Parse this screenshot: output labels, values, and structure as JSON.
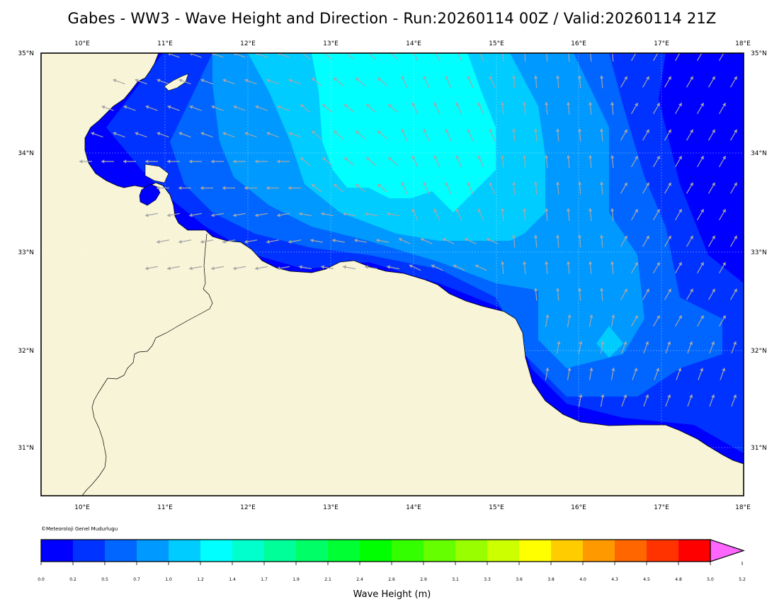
{
  "title": "Gabes - WW3 - Wave Height and Direction - Run:20260114 00Z / Valid:20260114 21Z",
  "map": {
    "lon_labels": [
      "10°E",
      "11°E",
      "12°E",
      "13°E",
      "14°E",
      "15°E",
      "16°E",
      "17°E",
      "18°E"
    ],
    "lat_labels": [
      "35°N",
      "34°N",
      "33°N",
      "32°N",
      "31°N"
    ],
    "land_color": "#f7f4d7",
    "arrow_color": "#a6a6a6"
  },
  "credit": "©Meteoroloji Genel Mudurlugu",
  "colorbar": {
    "label": "Wave Height (m)",
    "ticks": [
      "0.0",
      "0.2",
      "0.5",
      "0.7",
      "1.0",
      "1.2",
      "1.4",
      "1.7",
      "1.9",
      "2.1",
      "2.4",
      "2.6",
      "2.9",
      "3.1",
      "3.3",
      "3.6",
      "3.8",
      "4.0",
      "4.3",
      "4.5",
      "4.8",
      "5.0",
      "5.2"
    ],
    "colors": [
      "#0000ff",
      "#0033ff",
      "#0066ff",
      "#0099ff",
      "#00ccff",
      "#00ffff",
      "#00ffcc",
      "#00ff99",
      "#00ff66",
      "#00ff33",
      "#00ff00",
      "#33ff00",
      "#66ff00",
      "#99ff00",
      "#ccff00",
      "#ffff00",
      "#ffcc00",
      "#ff9900",
      "#ff6600",
      "#ff3300",
      "#ff0000",
      "#ff66ff"
    ]
  }
}
